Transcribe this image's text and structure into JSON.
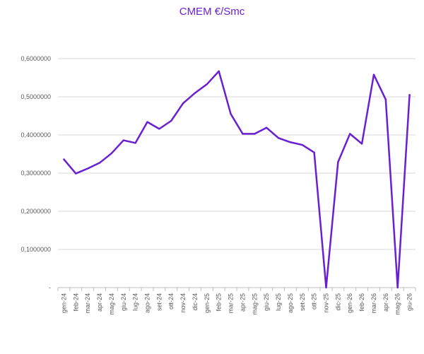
{
  "chart_data": {
    "type": "line",
    "title": "CMEM €/Smc",
    "xlabel": "",
    "ylabel": "",
    "ylim": [
      0,
      0.6
    ],
    "yticks": [
      {
        "value": 0,
        "label": "-"
      },
      {
        "value": 0.1,
        "label": "0,1000000"
      },
      {
        "value": 0.2,
        "label": "0,2000000"
      },
      {
        "value": 0.3,
        "label": "0,3000000"
      },
      {
        "value": 0.4,
        "label": "0,4000000"
      },
      {
        "value": 0.5,
        "label": "0,5000000"
      },
      {
        "value": 0.6,
        "label": "0,6000000"
      }
    ],
    "grid": true,
    "legend": "none",
    "line_color": "#6a1fd0",
    "categories": [
      "gen-24",
      "feb-24",
      "mar-24",
      "apr-24",
      "mag-24",
      "giu-24",
      "lug-24",
      "ago-24",
      "set-24",
      "ott-24",
      "nov-24",
      "dic-24",
      "gen-25",
      "feb-25",
      "mar-25",
      "apr-25",
      "mag-25",
      "giu-25",
      "lug-25",
      "ago-25",
      "set-25",
      "ott-25",
      "nov-25",
      "dic-25",
      "gen-26",
      "feb-26",
      "mar-26",
      "apr-26",
      "mag-26",
      "giu-26"
    ],
    "series": [
      {
        "values": [
          0.336,
          0.299,
          0.312,
          0.327,
          0.352,
          0.386,
          0.379,
          0.434,
          0.416,
          0.437,
          0.483,
          0.51,
          0.533,
          0.567,
          0.455,
          0.403,
          0.403,
          0.419,
          0.392,
          0.381,
          0.374,
          0.354,
          0.0,
          0.329,
          0.403,
          0.377,
          0.558,
          0.493,
          0.0,
          0.505
        ]
      }
    ]
  }
}
